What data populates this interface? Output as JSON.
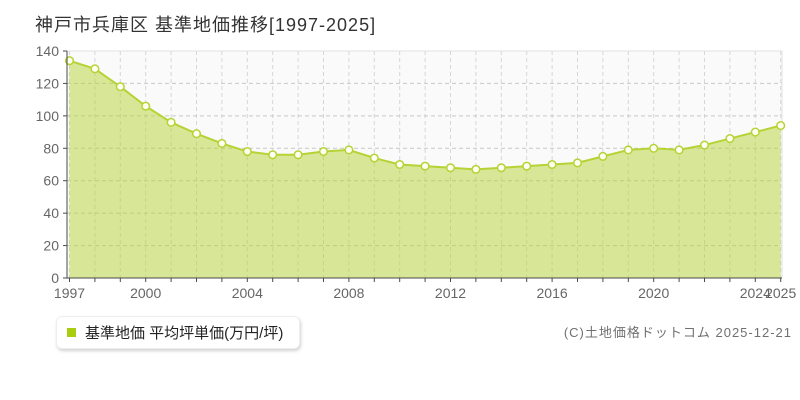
{
  "page": {
    "title": "神戸市兵庫区 基準地価推移[1997-2025]",
    "copyright": "(C)土地価格ドットコム 2025-12-21"
  },
  "legend": {
    "label": "基準地価 平均坪単価(万円/坪)",
    "marker_color": "#aacc11"
  },
  "chart_data": {
    "type": "area",
    "title": "神戸市兵庫区 基準地価推移[1997-2025]",
    "xlabel": "",
    "ylabel": "",
    "x": [
      1997,
      1998,
      1999,
      2000,
      2001,
      2002,
      2003,
      2004,
      2005,
      2006,
      2007,
      2008,
      2009,
      2010,
      2011,
      2012,
      2013,
      2014,
      2015,
      2016,
      2017,
      2018,
      2019,
      2020,
      2021,
      2022,
      2023,
      2024,
      2025
    ],
    "series": [
      {
        "name": "基準地価 平均坪単価(万円/坪)",
        "values": [
          134,
          129,
          118,
          106,
          96,
          89,
          83,
          78,
          76,
          76,
          78,
          79,
          74,
          70,
          69,
          68,
          67,
          68,
          69,
          70,
          71,
          75,
          79,
          80,
          79,
          82,
          86,
          90,
          94
        ]
      }
    ],
    "ylim": [
      0,
      140
    ],
    "ytick_step": 20,
    "xticks_labeled": [
      1997,
      2000,
      2004,
      2008,
      2012,
      2016,
      2020,
      2024,
      2025
    ],
    "grid": true,
    "legend_position": "bottom-left",
    "colors": {
      "line": "#b5d334",
      "fill": "rgba(181,211,52,0.5)",
      "marker_fill": "#fefff2",
      "plot_bg": "#fafafa",
      "plot_border": "#e2e2e2",
      "grid_h": "#c8c8c8",
      "grid_v": "#d6d6d6",
      "axis": "#4a4a4a",
      "tick_label": "#666666"
    }
  }
}
